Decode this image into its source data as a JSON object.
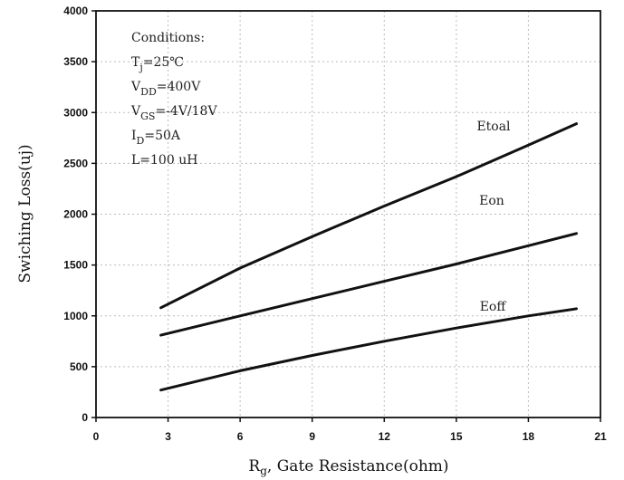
{
  "chart_data": {
    "type": "line",
    "xlabel": {
      "main": "R",
      "sub": "g",
      "rest": ", Gate Resistance(ohm)"
    },
    "ylabel": "Swiching Loss(uj)",
    "xlim": [
      0,
      21
    ],
    "ylim": [
      0,
      4000
    ],
    "xticks": [
      "0",
      "3",
      "6",
      "9",
      "12",
      "15",
      "18",
      "21"
    ],
    "yticks": [
      "0",
      "500",
      "1000",
      "1500",
      "2000",
      "2500",
      "3000",
      "3500",
      "4000"
    ],
    "grid": true,
    "conditions": {
      "title": "Conditions:",
      "lines": [
        {
          "main": "T",
          "sub": "j",
          "rest": "=25℃"
        },
        {
          "main": "V",
          "sub": "DD",
          "rest": "=400V"
        },
        {
          "main": "V",
          "sub": "GS",
          "rest": "=-4V/18V"
        },
        {
          "main": "I",
          "sub": "D",
          "rest": "=50A"
        },
        {
          "main": "L=100 uH",
          "sub": "",
          "rest": ""
        }
      ]
    },
    "series": [
      {
        "name": "Etoal",
        "x": [
          2.7,
          6,
          9,
          12,
          15,
          18,
          20
        ],
        "y": [
          1080,
          1470,
          1780,
          2080,
          2370,
          2680,
          2890
        ]
      },
      {
        "name": "Eon",
        "x": [
          2.7,
          6,
          9,
          12,
          15,
          18,
          20
        ],
        "y": [
          810,
          1000,
          1170,
          1340,
          1510,
          1690,
          1810
        ]
      },
      {
        "name": "Eoff",
        "x": [
          2.7,
          6,
          9,
          12,
          15,
          18,
          20
        ],
        "y": [
          270,
          460,
          610,
          750,
          880,
          1000,
          1070
        ]
      }
    ]
  }
}
